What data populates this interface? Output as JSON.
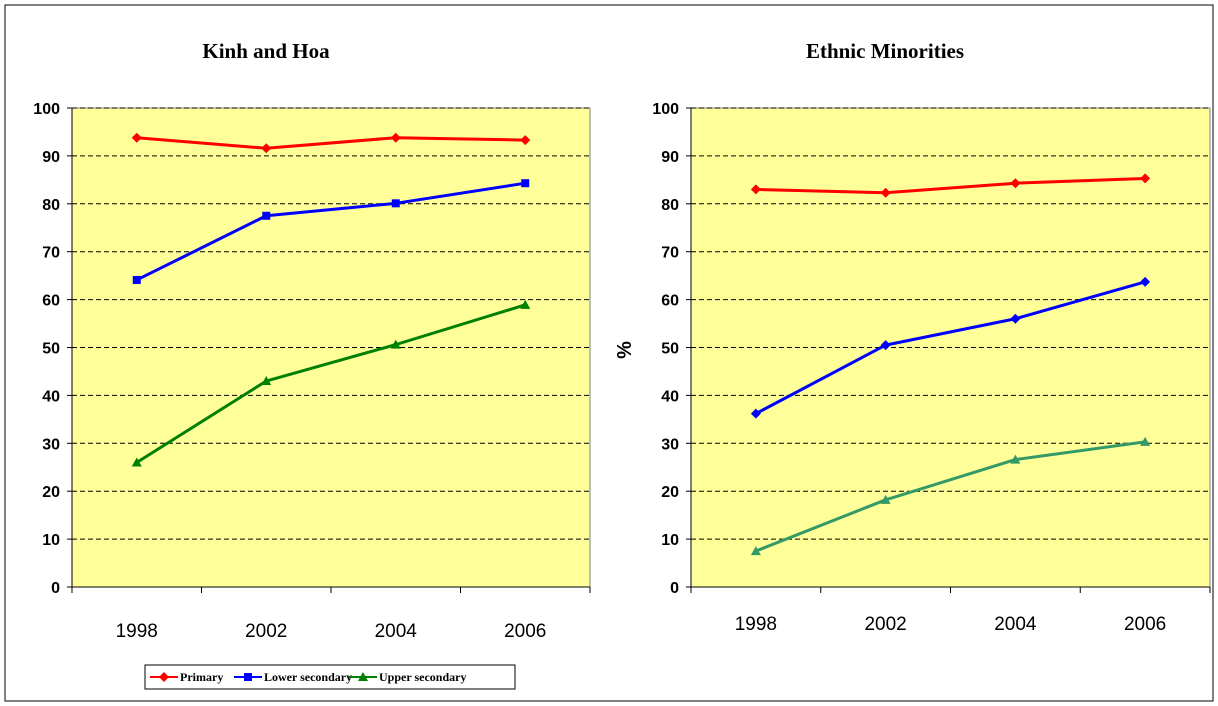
{
  "chart_data": [
    {
      "type": "line",
      "title": "Kinh and Hoa",
      "xlabel": "",
      "ylabel": "",
      "categories": [
        "1998",
        "2002",
        "2004",
        "2006"
      ],
      "ylim": [
        0,
        100
      ],
      "yticks": [
        "0",
        "10",
        "20",
        "30",
        "40",
        "50",
        "60",
        "70",
        "80",
        "90",
        "100"
      ],
      "grid": true,
      "series": [
        {
          "name": "Primary",
          "values": [
            93.8,
            91.6,
            93.8,
            93.3
          ],
          "color": "#ff0000",
          "marker": "diamond"
        },
        {
          "name": "Lower secondary",
          "values": [
            64.1,
            77.5,
            80.1,
            84.3
          ],
          "color": "#0000ff",
          "marker": "square"
        },
        {
          "name": "Upper secondary",
          "values": [
            26.0,
            43.0,
            50.6,
            58.9
          ],
          "color": "#008000",
          "marker": "triangle"
        }
      ]
    },
    {
      "type": "line",
      "title": "Ethnic Minorities",
      "xlabel": "",
      "ylabel": "%",
      "categories": [
        "1998",
        "2002",
        "2004",
        "2006"
      ],
      "ylim": [
        0,
        100
      ],
      "yticks": [
        "0",
        "10",
        "20",
        "30",
        "40",
        "50",
        "60",
        "70",
        "80",
        "90",
        "100"
      ],
      "grid": true,
      "series": [
        {
          "name": "Primary",
          "values": [
            83.0,
            82.3,
            84.3,
            85.3
          ],
          "color": "#ff0000",
          "marker": "diamond"
        },
        {
          "name": "Lower secondary",
          "values": [
            36.2,
            50.5,
            56.0,
            63.7
          ],
          "color": "#0000ff",
          "marker": "diamond"
        },
        {
          "name": "Upper secondary",
          "values": [
            7.5,
            18.2,
            26.6,
            30.3
          ],
          "color": "#339966",
          "marker": "triangle"
        }
      ]
    }
  ],
  "legend": {
    "placement": "bottom-left",
    "items": [
      {
        "label": "Primary",
        "color": "#ff0000",
        "marker": "diamond"
      },
      {
        "label": "Lower secondary",
        "color": "#0000ff",
        "marker": "square"
      },
      {
        "label": "Upper secondary",
        "color": "#008000",
        "marker": "triangle"
      }
    ]
  },
  "colors": {
    "plot_background": "#ffff99",
    "grid": "#000000"
  }
}
